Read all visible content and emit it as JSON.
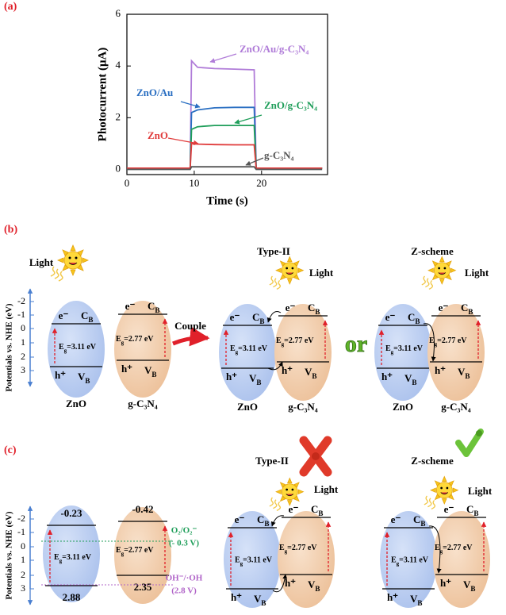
{
  "chart_data": {
    "type": "line",
    "panel_label": "(a)",
    "xlabel": "Time (s)",
    "ylabel": "Photocurrent (μA)",
    "x": [
      0,
      9.4,
      9.6,
      10.5,
      13,
      16,
      18.9,
      19.2,
      29
    ],
    "series": [
      {
        "name": "ZnO/Au/g-C₃N₄",
        "color": "#b07cd8",
        "values": [
          0.05,
          0.05,
          4.2,
          3.95,
          3.9,
          3.88,
          3.85,
          0.05,
          0.05
        ]
      },
      {
        "name": "ZnO/Au",
        "color": "#2a6fc2",
        "values": [
          0.05,
          0.05,
          2.2,
          2.3,
          2.38,
          2.4,
          2.4,
          0.05,
          0.05
        ]
      },
      {
        "name": "ZnO/g-C₃N₄",
        "color": "#1f9e5a",
        "values": [
          0.05,
          0.05,
          1.55,
          1.65,
          1.7,
          1.7,
          1.7,
          0.05,
          0.05
        ]
      },
      {
        "name": "ZnO",
        "color": "#e03c3c",
        "values": [
          0.05,
          0.05,
          1.0,
          0.98,
          0.96,
          0.95,
          0.95,
          0.05,
          0.05
        ]
      },
      {
        "name": "g-C₃N₄",
        "color": "#555555",
        "values": [
          0,
          0,
          0.1,
          0.1,
          0.1,
          0.1,
          0.1,
          0,
          0
        ]
      }
    ],
    "xlim": [
      0,
      29.8
    ],
    "ylim": [
      -0.2,
      6
    ],
    "xticks": [
      0,
      10,
      20
    ],
    "yticks": [
      0,
      2,
      4,
      6
    ]
  },
  "panel_b": {
    "label": "(b)",
    "axis_title": "Potentials vs. NHE (eV)",
    "axis_ticks": [
      "-2",
      "-1",
      "0",
      "1",
      "2",
      "3"
    ],
    "couple": "Couple",
    "or": "or",
    "diagrams": [
      {
        "light": "Light",
        "semiconductors": [
          {
            "name": "ZnO",
            "e": "e⁻",
            "cb": [
              "C",
              {
                "sub": "B"
              }
            ],
            "eg": [
              "E",
              {
                "sub": "g"
              },
              "=3.11 eV"
            ],
            "h": "h⁺",
            "vb": [
              "V",
              {
                "sub": "B"
              }
            ]
          },
          {
            "name": "g-C₃N₄",
            "e": "e⁻",
            "cb": [
              "C",
              {
                "sub": "B"
              }
            ],
            "eg": [
              "E",
              {
                "sub": "g"
              },
              "=2.77 eV"
            ],
            "h": "h⁺",
            "vb": [
              "V",
              {
                "sub": "B"
              }
            ]
          }
        ]
      },
      {
        "title": "Type-II",
        "light": "Light",
        "semiconductors": [
          {
            "name": "ZnO",
            "e": "e⁻",
            "cb": [
              "C",
              {
                "sub": "B"
              }
            ],
            "eg": [
              "E",
              {
                "sub": "g"
              },
              "=3.11 eV"
            ],
            "h": "h⁺",
            "vb": [
              "V",
              {
                "sub": "B"
              }
            ]
          },
          {
            "name": "g-C₃N₄",
            "e": "e⁻",
            "cb": [
              "C",
              {
                "sub": "B"
              }
            ],
            "eg": [
              "E",
              {
                "sub": "g"
              },
              "=2.77 eV"
            ],
            "h": "h⁺",
            "vb": [
              "V",
              {
                "sub": "B"
              }
            ]
          }
        ]
      },
      {
        "title": "Z-scheme",
        "light": "Light",
        "semiconductors": [
          {
            "name": "ZnO",
            "e": "e⁻",
            "cb": [
              "C",
              {
                "sub": "B"
              }
            ],
            "eg": [
              "E",
              {
                "sub": "g"
              },
              "=3.11 eV"
            ],
            "h": "h⁺",
            "vb": [
              "V",
              {
                "sub": "B"
              }
            ]
          },
          {
            "name": "g-C₃N₄",
            "e": "e⁻",
            "cb": [
              "C",
              {
                "sub": "B"
              }
            ],
            "eg": [
              "E",
              {
                "sub": "g"
              },
              "=2.77 eV"
            ],
            "h": "h⁺",
            "vb": [
              "V",
              {
                "sub": "B"
              }
            ]
          }
        ]
      }
    ]
  },
  "panel_c": {
    "label": "(c)",
    "axis_title": "Potentials vs. NHE (eV)",
    "axis_ticks": [
      "-2",
      "-1",
      "0",
      "1",
      "2",
      "3"
    ],
    "o2_couple": "O₂/O₂⁻",
    "o2_potential": "(- 0.3 V)",
    "oh_couple": "OH⁻/·OH",
    "oh_potential": "(2.8 V)",
    "diagrams": [
      {
        "semiconductors": [
          {
            "cb_value": "-0.23",
            "eg": [
              "E",
              {
                "sub": "g"
              },
              "=3.11 eV"
            ],
            "vb_value": "2.88"
          },
          {
            "cb_value": "-0.42",
            "eg": [
              "E",
              {
                "sub": "g"
              },
              "=2.77 eV"
            ],
            "vb_value": "2.35"
          }
        ]
      },
      {
        "title": "Type-II",
        "light": "Light",
        "semiconductors": [
          {
            "e": "e⁻",
            "cb": [
              "C",
              {
                "sub": "B"
              }
            ],
            "eg": [
              "E",
              {
                "sub": "g"
              },
              "=3.11 eV"
            ],
            "h": "h⁺",
            "vb": [
              "V",
              {
                "sub": "B"
              }
            ]
          },
          {
            "e": "e⁻",
            "cb": [
              "C",
              {
                "sub": "B"
              }
            ],
            "eg": [
              "E",
              {
                "sub": "g"
              },
              "=2.77 eV"
            ],
            "h": "h⁺",
            "vb": [
              "V",
              {
                "sub": "B"
              }
            ]
          }
        ]
      },
      {
        "title": "Z-scheme",
        "light": "Light",
        "semiconductors": [
          {
            "e": "e⁻",
            "cb": [
              "C",
              {
                "sub": "B"
              }
            ],
            "eg": [
              "E",
              {
                "sub": "g"
              },
              "=3.11 eV"
            ],
            "h": "h⁺",
            "vb": [
              "V",
              {
                "sub": "B"
              }
            ]
          },
          {
            "e": "e⁻",
            "cb": [
              "C",
              {
                "sub": "B"
              }
            ],
            "eg": [
              "E",
              {
                "sub": "g"
              },
              "=2.77 eV"
            ],
            "h": "h⁺",
            "vb": [
              "V",
              {
                "sub": "B"
              }
            ]
          }
        ]
      }
    ]
  }
}
